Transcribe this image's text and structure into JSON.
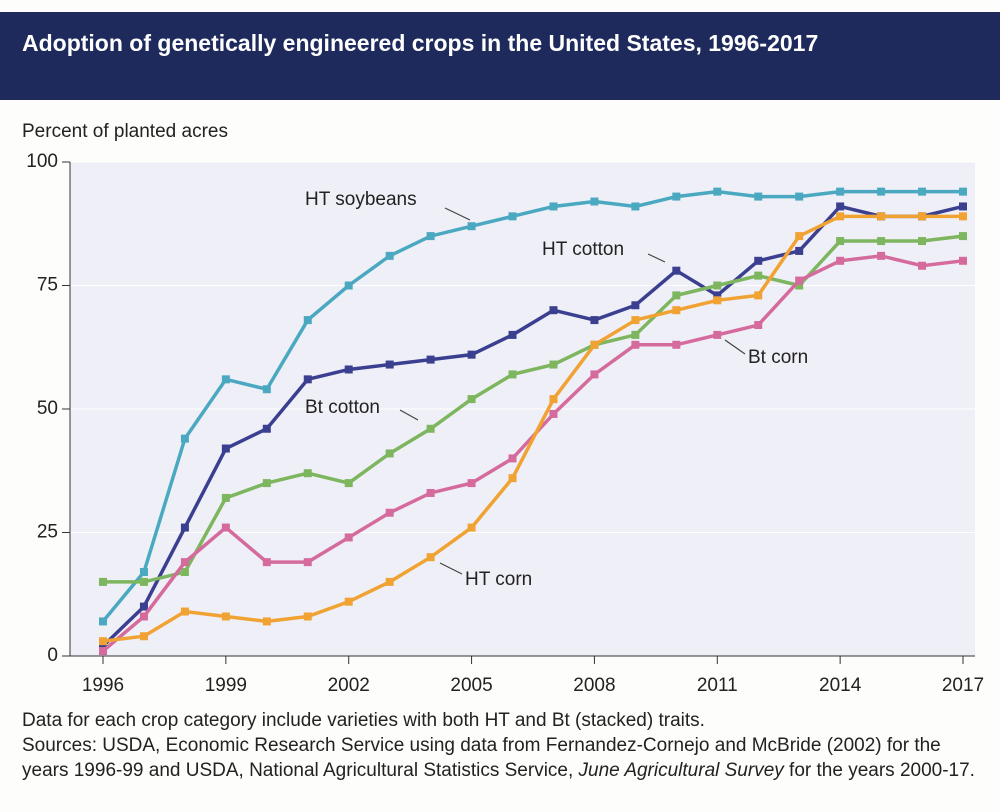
{
  "chart_data": {
    "type": "line",
    "title": "Adoption of genetically engineered crops in the United States, 1996-2017",
    "y_label": "Percent of planted acres",
    "x": [
      1996,
      1997,
      1998,
      1999,
      2000,
      2001,
      2002,
      2003,
      2004,
      2005,
      2006,
      2007,
      2008,
      2009,
      2010,
      2011,
      2012,
      2013,
      2014,
      2015,
      2016,
      2017
    ],
    "xlim": [
      1996,
      2017
    ],
    "xticks": [
      1996,
      1999,
      2002,
      2005,
      2008,
      2011,
      2014,
      2017
    ],
    "ylim": [
      0,
      100
    ],
    "yticks": [
      0,
      25,
      50,
      75,
      100
    ],
    "grid": true,
    "series": [
      {
        "name": "HT soybeans",
        "color": "#4aa9c0",
        "values": [
          7,
          17,
          44,
          56,
          54,
          68,
          75,
          81,
          85,
          87,
          89,
          91,
          92,
          91,
          93,
          94,
          93,
          93,
          94,
          94,
          94,
          94
        ]
      },
      {
        "name": "HT cotton",
        "color": "#3b3f90",
        "values": [
          2,
          10,
          26,
          42,
          46,
          56,
          58,
          59,
          60,
          61,
          65,
          70,
          68,
          71,
          78,
          73,
          80,
          82,
          91,
          89,
          89,
          91
        ]
      },
      {
        "name": "Bt cotton",
        "color": "#7db65e",
        "values": [
          15,
          15,
          17,
          32,
          35,
          37,
          35,
          41,
          46,
          52,
          57,
          59,
          63,
          65,
          73,
          75,
          77,
          75,
          84,
          84,
          84,
          85
        ]
      },
      {
        "name": "Bt corn",
        "color": "#d56b9d",
        "values": [
          1,
          8,
          19,
          26,
          19,
          19,
          24,
          29,
          33,
          35,
          40,
          49,
          57,
          63,
          63,
          65,
          67,
          76,
          80,
          81,
          79,
          80
        ]
      },
      {
        "name": "HT corn",
        "color": "#f0a232",
        "values": [
          3,
          4,
          9,
          8,
          7,
          8,
          11,
          15,
          20,
          26,
          36,
          52,
          63,
          68,
          70,
          72,
          73,
          85,
          89,
          89,
          89,
          89
        ]
      }
    ],
    "note": "Data for each crop category include varieties with both HT and Bt (stacked) traits.",
    "sources": "Sources: USDA, Economic Research Service using data from Fernandez-Cornejo and McBride (2002) for the years 1996-99 and USDA, National Agricultural Statistics Service,",
    "sources_italic": "June Agricultural Survey",
    "sources_end": " for the years 2000-17."
  }
}
